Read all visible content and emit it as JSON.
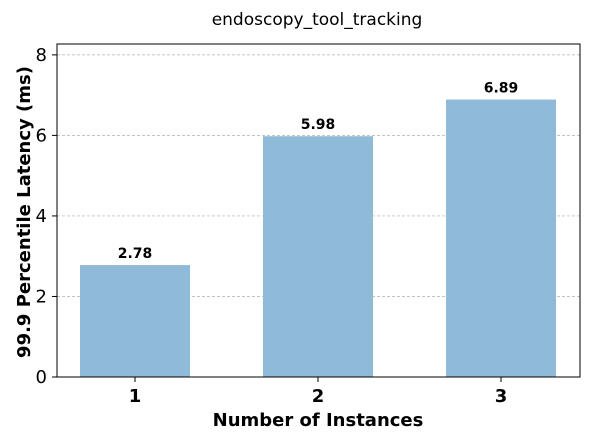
{
  "chart_data": {
    "type": "bar",
    "title": "endoscopy_tool_tracking",
    "xlabel": "Number of Instances",
    "ylabel": "99.9 Percentile Latency (ms)",
    "categories": [
      "1",
      "2",
      "3"
    ],
    "values": [
      2.78,
      5.98,
      6.89
    ],
    "data_labels": [
      "2.78",
      "5.98",
      "6.89"
    ],
    "yticks": [
      0,
      2,
      4,
      6,
      8
    ],
    "ylim": [
      0,
      8.27
    ],
    "grid": true,
    "bar_color": "#8fbad8",
    "grid_color": "#b0b0b0"
  }
}
